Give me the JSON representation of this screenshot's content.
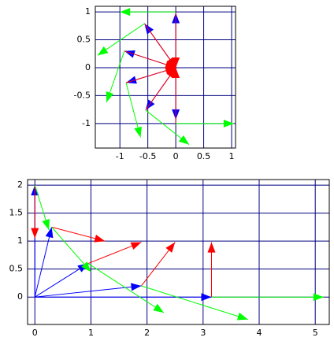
{
  "chart_data": [
    {
      "type": "vector",
      "grid": true,
      "xlim": [
        -1.44,
        1.07
      ],
      "ylim": [
        -1.44,
        1.1
      ],
      "xticks": [
        -1,
        -0.5,
        0,
        0.5,
        1
      ],
      "yticks": [
        -1,
        -0.5,
        0,
        0.5,
        1
      ],
      "series": [
        {
          "color": "#0000ff",
          "x0": [
            0,
            0,
            0,
            0,
            0,
            0
          ],
          "y0": [
            0,
            0,
            0,
            0,
            0,
            0
          ],
          "x1": [
            0,
            -0.56,
            -0.92,
            -0.89,
            -0.54,
            0
          ],
          "y1": [
            0.98,
            0.79,
            0.3,
            -0.27,
            -0.76,
            -0.93
          ]
        },
        {
          "color": "#ff0000",
          "x0": [
            0,
            -0.56,
            -0.92,
            -0.89,
            -0.54,
            0
          ],
          "y0": [
            1,
            0.79,
            0.3,
            -0.27,
            -0.76,
            -1
          ],
          "x1": [
            0,
            0,
            0,
            0,
            0,
            0
          ],
          "y1": [
            0,
            0,
            0,
            0,
            0,
            0
          ]
        },
        {
          "color": "#00ff00",
          "x0": [
            0,
            -0.56,
            -0.92,
            -0.89,
            -0.54,
            0
          ],
          "y0": [
            1,
            0.79,
            0.3,
            -0.27,
            -0.76,
            -1
          ],
          "x1": [
            -1,
            -1.4,
            -1.24,
            -0.63,
            0.24,
            1.04
          ],
          "y1": [
            1,
            0.22,
            -0.62,
            -1.25,
            -1.38,
            -1
          ]
        }
      ]
    },
    {
      "type": "vector",
      "grid": true,
      "xlim": [
        -0.13,
        5.25
      ],
      "ylim": [
        -0.49,
        2.1
      ],
      "xticks": [
        0,
        1,
        2,
        3,
        4,
        5
      ],
      "yticks": [
        0,
        0.5,
        1,
        1.5,
        2
      ],
      "series": [
        {
          "color": "#0000ff",
          "x0": [
            0,
            0,
            0,
            0,
            0
          ],
          "y0": [
            0,
            0,
            0,
            0,
            0
          ],
          "x1": [
            0,
            0.3,
            0.95,
            1.9,
            3.15
          ],
          "y1": [
            2,
            1.25,
            0.6,
            0.2,
            0
          ]
        },
        {
          "color": "#ff0000",
          "x0": [
            0,
            0.3,
            0.95,
            1.9,
            3.15
          ],
          "y0": [
            2,
            1.25,
            0.6,
            0.2,
            0
          ],
          "x1": [
            0,
            1.25,
            1.9,
            2.5,
            3.15
          ],
          "y1": [
            1.05,
            1,
            0.98,
            0.98,
            0.98
          ]
        },
        {
          "color": "#00ff00",
          "x0": [
            0,
            0.3,
            0.95,
            1.9,
            3.15
          ],
          "y0": [
            2,
            1.25,
            0.6,
            0.2,
            0
          ],
          "x1": [
            0.25,
            1,
            2.3,
            3.8,
            5.15
          ],
          "y1": [
            1.2,
            0.45,
            -0.28,
            -0.4,
            0
          ]
        }
      ]
    }
  ]
}
